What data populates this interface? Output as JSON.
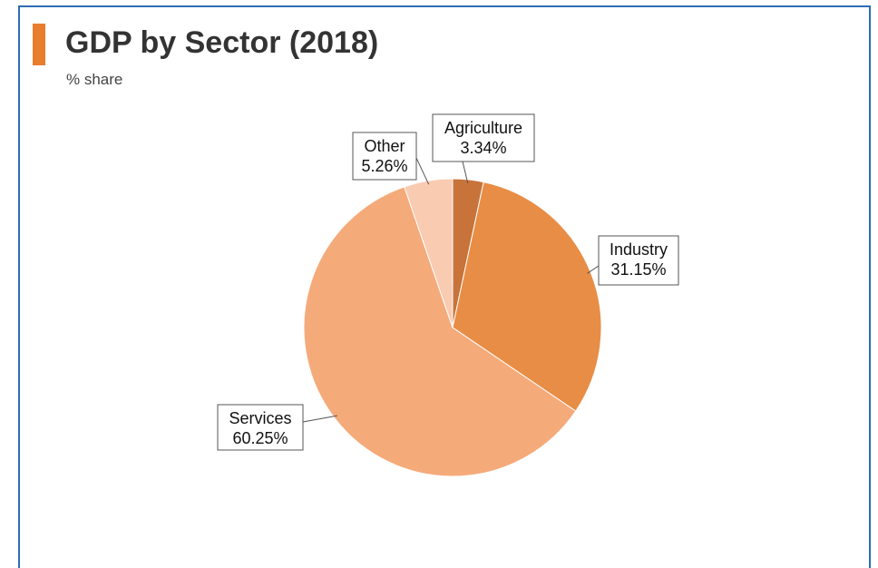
{
  "chart_data": {
    "type": "pie",
    "title": "GDP by Sector (2018)",
    "subtitle": "% share",
    "slices": [
      {
        "label": "Agriculture",
        "value": 3.34,
        "display": "3.34%",
        "color": "#c8733a"
      },
      {
        "label": "Industry",
        "value": 31.15,
        "display": "31.15%",
        "color": "#e88d45"
      },
      {
        "label": "Services",
        "value": 60.25,
        "display": "60.25%",
        "color": "#f5aa7a"
      },
      {
        "label": "Other",
        "value": 5.26,
        "display": "5.26%",
        "color": "#f9cbb0"
      }
    ],
    "start_angle_deg": 0,
    "direction": "clockwise",
    "legend": "none",
    "data_labels": "callouts"
  },
  "colors": {
    "accent": "#e87d2e",
    "frame_border": "#2f6db5"
  }
}
